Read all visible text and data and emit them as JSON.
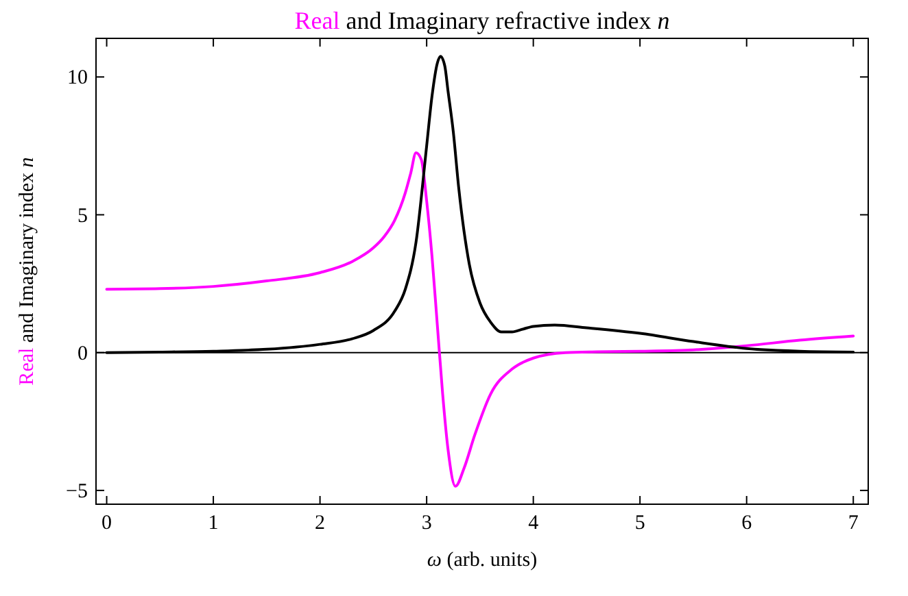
{
  "chart_data": {
    "type": "line",
    "title": "Real and Imaginary refractive index n",
    "xlabel": "ω (arb. units)",
    "ylabel": "Real and Imaginary index n",
    "xlim": [
      -0.1,
      7.14
    ],
    "xticks": [
      0,
      1,
      2,
      3,
      4,
      5,
      6,
      7
    ],
    "ylim": [
      -5.5,
      11.4
    ],
    "yticks": [
      -5,
      0,
      5,
      10
    ],
    "marker": "none",
    "line_style": "solid",
    "ref_lines": [
      {
        "axis": "y",
        "value": 0,
        "color": "#000000"
      }
    ],
    "series": [
      {
        "color": "#ff00ff",
        "x": [
          0,
          0.5,
          1,
          1.5,
          2,
          2.3,
          2.5,
          2.6,
          2.7,
          2.8,
          2.85,
          2.9,
          2.95,
          3.0,
          3.05,
          3.1,
          3.15,
          3.2,
          3.27,
          3.35,
          3.45,
          3.6,
          3.8,
          4,
          4.3,
          4.6,
          5,
          5.5,
          6,
          6.5,
          7
        ],
        "values": [
          2.3,
          2.32,
          2.4,
          2.6,
          2.9,
          3.3,
          3.8,
          4.2,
          4.8,
          5.8,
          6.5,
          7.25,
          7.0,
          5.5,
          3.5,
          1.0,
          -1.5,
          -3.5,
          -4.85,
          -4.2,
          -3.0,
          -1.5,
          -0.6,
          -0.2,
          0,
          0.03,
          0.05,
          0.1,
          0.25,
          0.45,
          0.6
        ]
      },
      {
        "color": "#000000",
        "x": [
          0,
          0.5,
          1,
          1.5,
          2,
          2.3,
          2.5,
          2.7,
          2.8,
          2.9,
          3.0,
          3.05,
          3.1,
          3.13,
          3.17,
          3.2,
          3.25,
          3.3,
          3.4,
          3.5,
          3.6,
          3.7,
          3.8,
          3.9,
          4,
          4.2,
          4.5,
          5,
          5.5,
          6,
          6.5,
          7
        ],
        "values": [
          0,
          0.02,
          0.05,
          0.12,
          0.3,
          0.5,
          0.8,
          1.5,
          2.3,
          4,
          7.5,
          9.3,
          10.5,
          10.75,
          10.4,
          9.5,
          8,
          6,
          3.2,
          1.8,
          1.1,
          0.75,
          0.75,
          0.85,
          0.95,
          1.0,
          0.9,
          0.7,
          0.4,
          0.15,
          0.05,
          0.02
        ]
      }
    ]
  }
}
